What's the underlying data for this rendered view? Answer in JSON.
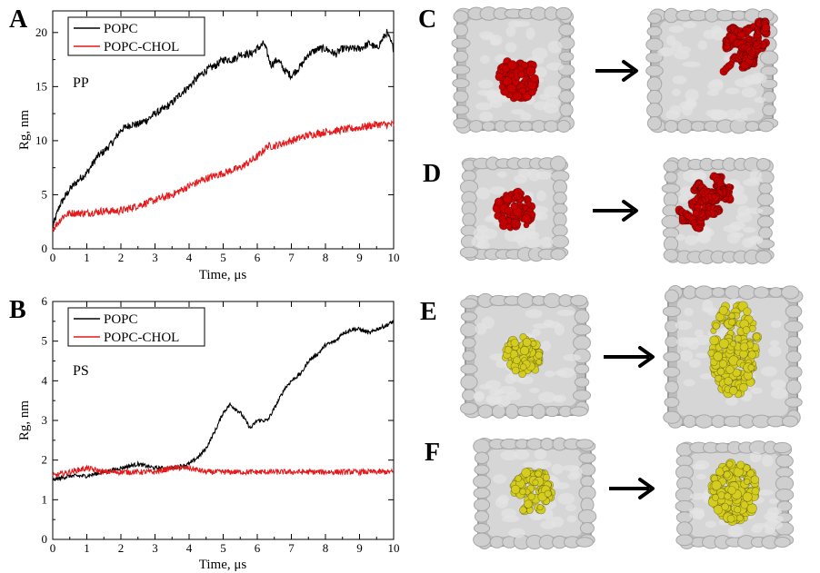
{
  "panels": {
    "A": "A",
    "B": "B",
    "C": "C",
    "D": "D",
    "E": "E",
    "F": "F"
  },
  "colors": {
    "popc": "#000000",
    "popc_chol": "#e41a1c",
    "membrane": "#c8c8c8",
    "red_protein": "#c40000",
    "yellow_protein": "#d4cc1e",
    "arrow": "#000000"
  },
  "chart_data": [
    {
      "panel": "A",
      "type": "line",
      "annotation": "PP",
      "xlabel": "Time, μs",
      "ylabel": "Rg, nm",
      "xlim": [
        0,
        10
      ],
      "ylim": [
        0,
        22
      ],
      "xticks": [
        0,
        1,
        2,
        3,
        4,
        5,
        6,
        7,
        8,
        9,
        10
      ],
      "yticks": [
        0,
        5,
        10,
        15,
        20
      ],
      "legend_position": "top-left",
      "grid": false,
      "series": [
        {
          "name": "POPC",
          "color": "#000000",
          "x": [
            0,
            0.2,
            0.5,
            0.8,
            1.0,
            1.3,
            1.5,
            1.8,
            2.0,
            2.3,
            2.5,
            2.8,
            3.0,
            3.3,
            3.5,
            3.8,
            4.0,
            4.3,
            4.5,
            4.8,
            5.0,
            5.3,
            5.5,
            5.8,
            6.0,
            6.2,
            6.4,
            6.6,
            6.8,
            7.0,
            7.3,
            7.5,
            7.8,
            8.0,
            8.3,
            8.5,
            8.8,
            9.0,
            9.3,
            9.5,
            9.8,
            10.0
          ],
          "y": [
            2.0,
            4.0,
            5.5,
            6.5,
            7.0,
            8.5,
            9.0,
            10.0,
            11.0,
            11.5,
            11.5,
            12.0,
            12.5,
            13.0,
            13.5,
            14.5,
            15.0,
            16.0,
            16.5,
            17.0,
            17.5,
            17.5,
            18.0,
            18.0,
            18.5,
            19.0,
            17.0,
            17.5,
            16.5,
            16.0,
            17.0,
            18.0,
            18.5,
            18.5,
            18.0,
            18.5,
            18.5,
            18.5,
            19.0,
            18.5,
            20.0,
            18.5
          ]
        },
        {
          "name": "POPC-CHOL",
          "color": "#e41a1c",
          "x": [
            0,
            0.3,
            0.5,
            1.0,
            1.5,
            2.0,
            2.5,
            3.0,
            3.5,
            4.0,
            4.5,
            5.0,
            5.5,
            6.0,
            6.3,
            6.5,
            7.0,
            7.5,
            8.0,
            8.5,
            9.0,
            9.5,
            10.0
          ],
          "y": [
            1.8,
            3.0,
            3.3,
            3.3,
            3.5,
            3.5,
            4.0,
            4.5,
            5.0,
            5.8,
            6.5,
            7.0,
            7.5,
            8.5,
            9.5,
            9.5,
            10.0,
            10.5,
            10.8,
            11.0,
            11.2,
            11.5,
            11.5
          ]
        }
      ]
    },
    {
      "panel": "B",
      "type": "line",
      "annotation": "PS",
      "xlabel": "Time, μs",
      "ylabel": "Rg, nm",
      "xlim": [
        0,
        10
      ],
      "ylim": [
        0,
        6
      ],
      "xticks": [
        0,
        1,
        2,
        3,
        4,
        5,
        6,
        7,
        8,
        9,
        10
      ],
      "yticks": [
        0,
        1,
        2,
        3,
        4,
        5,
        6
      ],
      "legend_position": "top-left",
      "grid": false,
      "series": [
        {
          "name": "POPC",
          "color": "#000000",
          "x": [
            0,
            0.5,
            1.0,
            1.5,
            2.0,
            2.5,
            3.0,
            3.5,
            4.0,
            4.3,
            4.5,
            4.8,
            5.0,
            5.2,
            5.5,
            5.8,
            6.0,
            6.3,
            6.5,
            6.8,
            7.0,
            7.3,
            7.5,
            7.8,
            8.0,
            8.3,
            8.5,
            8.8,
            9.0,
            9.3,
            9.5,
            9.8,
            10.0
          ],
          "y": [
            1.5,
            1.6,
            1.6,
            1.7,
            1.8,
            1.9,
            1.8,
            1.8,
            1.9,
            2.1,
            2.3,
            2.8,
            3.2,
            3.4,
            3.2,
            2.8,
            3.0,
            3.0,
            3.3,
            3.8,
            4.0,
            4.2,
            4.5,
            4.7,
            4.9,
            5.0,
            5.2,
            5.3,
            5.3,
            5.2,
            5.3,
            5.4,
            5.5
          ]
        },
        {
          "name": "POPC-CHOL",
          "color": "#e41a1c",
          "x": [
            0,
            0.5,
            1.0,
            1.5,
            2.0,
            2.5,
            3.0,
            3.5,
            4.0,
            4.5,
            5.0,
            5.5,
            6.0,
            6.5,
            7.0,
            7.5,
            8.0,
            8.5,
            9.0,
            9.5,
            10.0
          ],
          "y": [
            1.6,
            1.7,
            1.8,
            1.7,
            1.7,
            1.7,
            1.7,
            1.8,
            1.8,
            1.7,
            1.7,
            1.7,
            1.7,
            1.7,
            1.7,
            1.7,
            1.7,
            1.7,
            1.7,
            1.7,
            1.7
          ]
        }
      ]
    }
  ],
  "snapshots": [
    {
      "panel": "C",
      "protein": "red",
      "before": "compact",
      "after": "extended"
    },
    {
      "panel": "D",
      "protein": "red",
      "before": "compact",
      "after": "extended"
    },
    {
      "panel": "E",
      "protein": "yellow",
      "before": "compact",
      "after": "extended"
    },
    {
      "panel": "F",
      "protein": "yellow",
      "before": "compact",
      "after": "compact"
    }
  ]
}
